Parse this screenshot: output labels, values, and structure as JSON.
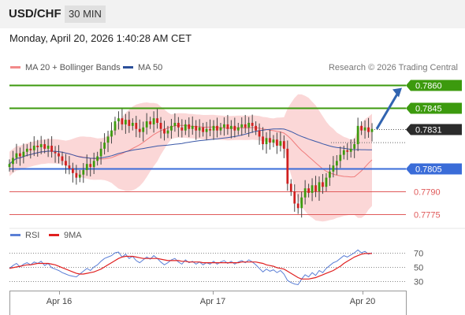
{
  "header": {
    "symbol": "USD/CHF",
    "timeframe": "30 MIN"
  },
  "datetime": "Monday, April 20, 2026 1:40:28 AM CET",
  "credit": "Research © 2026 Trading Central",
  "colors": {
    "green": "#3c9a0e",
    "blue": "#3a6cd8",
    "red": "#e05a5a",
    "bull": "#3c9a0e",
    "bear": "#d02020",
    "band": "#f9c9c9",
    "ma50": "#3a58a8",
    "rsi": "#5b7fd6",
    "rsi_ma": "#e02020",
    "arrow": "#3164b0"
  },
  "chart_data": [
    {
      "type": "candlestick",
      "title": "USD/CHF 30 MIN",
      "legend": [
        {
          "name": "MA 20 + Bollinger Bands",
          "color": "#f28a8a"
        },
        {
          "name": "MA 50",
          "color": "#2b4f9a"
        }
      ],
      "legend_placement": "top-left",
      "x_ticks": [
        "Apr 16",
        "Apr 17",
        "Apr 20"
      ],
      "ylim": [
        0.777,
        0.7862
      ],
      "levels": [
        {
          "label": "0.7860",
          "value": 0.786,
          "kind": "resistance",
          "style": "green-box"
        },
        {
          "label": "0.7845",
          "value": 0.7845,
          "kind": "resistance",
          "style": "green-box"
        },
        {
          "label": "0.7831",
          "value": 0.7831,
          "kind": "last",
          "style": "dark-box"
        },
        {
          "label": "0.7805",
          "value": 0.7805,
          "kind": "pivot",
          "style": "blue-box"
        },
        {
          "label": "0.7790",
          "value": 0.779,
          "kind": "support",
          "style": "red-text"
        },
        {
          "label": "0.7775",
          "value": 0.7775,
          "kind": "support",
          "style": "red-text"
        }
      ],
      "close": [
        0.7808,
        0.7812,
        0.7815,
        0.7813,
        0.7816,
        0.7818,
        0.7817,
        0.782,
        0.7819,
        0.7821,
        0.7818,
        0.782,
        0.7816,
        0.7815,
        0.7813,
        0.781,
        0.7807,
        0.7805,
        0.7802,
        0.7799,
        0.7801,
        0.7804,
        0.7808,
        0.7806,
        0.781,
        0.7813,
        0.7818,
        0.7822,
        0.7826,
        0.783,
        0.7836,
        0.7838,
        0.7834,
        0.7837,
        0.7833,
        0.7835,
        0.7831,
        0.7829,
        0.7832,
        0.7836,
        0.7834,
        0.7838,
        0.7835,
        0.7831,
        0.7828,
        0.783,
        0.7833,
        0.7835,
        0.7832,
        0.783,
        0.7834,
        0.7831,
        0.7833,
        0.783,
        0.7832,
        0.7829,
        0.7831,
        0.783,
        0.7833,
        0.783,
        0.7832,
        0.7834,
        0.7831,
        0.7833,
        0.783,
        0.7832,
        0.7834,
        0.7832,
        0.7835,
        0.7833,
        0.783,
        0.7826,
        0.7821,
        0.7825,
        0.7822,
        0.7824,
        0.782,
        0.7823,
        0.7818,
        0.7795,
        0.779,
        0.7782,
        0.7779,
        0.7786,
        0.7792,
        0.7789,
        0.7794,
        0.779,
        0.7796,
        0.7793,
        0.7799,
        0.7803,
        0.7807,
        0.781,
        0.7814,
        0.7817,
        0.7816,
        0.7818,
        0.7821,
        0.7833,
        0.783,
        0.7832,
        0.7829,
        0.7831
      ]
    },
    {
      "type": "line",
      "title": "RSI",
      "legend": [
        {
          "name": "RSI",
          "color": "#5b7fd6"
        },
        {
          "name": "9MA",
          "color": "#e02020"
        }
      ],
      "y_ticks": [
        70,
        50,
        30
      ],
      "ylim": [
        20,
        80
      ],
      "rsi": [
        48,
        52,
        55,
        50,
        54,
        56,
        53,
        57,
        55,
        58,
        52,
        55,
        49,
        47,
        45,
        42,
        40,
        38,
        37,
        36,
        40,
        44,
        48,
        45,
        50,
        53,
        58,
        62,
        64,
        66,
        70,
        71,
        64,
        68,
        62,
        65,
        59,
        56,
        60,
        64,
        61,
        66,
        62,
        57,
        53,
        56,
        60,
        62,
        57,
        54,
        60,
        56,
        58,
        54,
        57,
        53,
        56,
        54,
        58,
        54,
        57,
        59,
        55,
        58,
        54,
        57,
        59,
        56,
        60,
        57,
        53,
        48,
        43,
        47,
        44,
        46,
        42,
        45,
        40,
        31,
        28,
        26,
        25,
        33,
        39,
        36,
        42,
        38,
        45,
        42,
        48,
        52,
        56,
        58,
        62,
        66,
        64,
        67,
        70,
        74,
        70,
        72,
        68,
        70
      ],
      "rsi_ma": [
        48,
        49,
        50,
        51,
        52,
        53,
        53,
        54,
        55,
        55,
        55,
        55,
        54,
        53,
        51,
        49,
        47,
        45,
        43,
        41,
        40,
        40,
        41,
        42,
        43,
        45,
        47,
        50,
        53,
        56,
        59,
        62,
        64,
        65,
        65,
        65,
        64,
        63,
        62,
        62,
        62,
        62,
        62,
        61,
        60,
        59,
        59,
        59,
        59,
        58,
        58,
        57,
        57,
        57,
        57,
        56,
        56,
        56,
        56,
        56,
        56,
        56,
        56,
        56,
        56,
        56,
        57,
        57,
        57,
        57,
        57,
        56,
        55,
        53,
        52,
        51,
        49,
        48,
        47,
        44,
        41,
        38,
        35,
        33,
        33,
        33,
        34,
        35,
        37,
        39,
        41,
        43,
        45,
        48,
        51,
        55,
        58,
        61,
        64,
        66,
        68,
        69,
        69,
        69
      ]
    }
  ]
}
